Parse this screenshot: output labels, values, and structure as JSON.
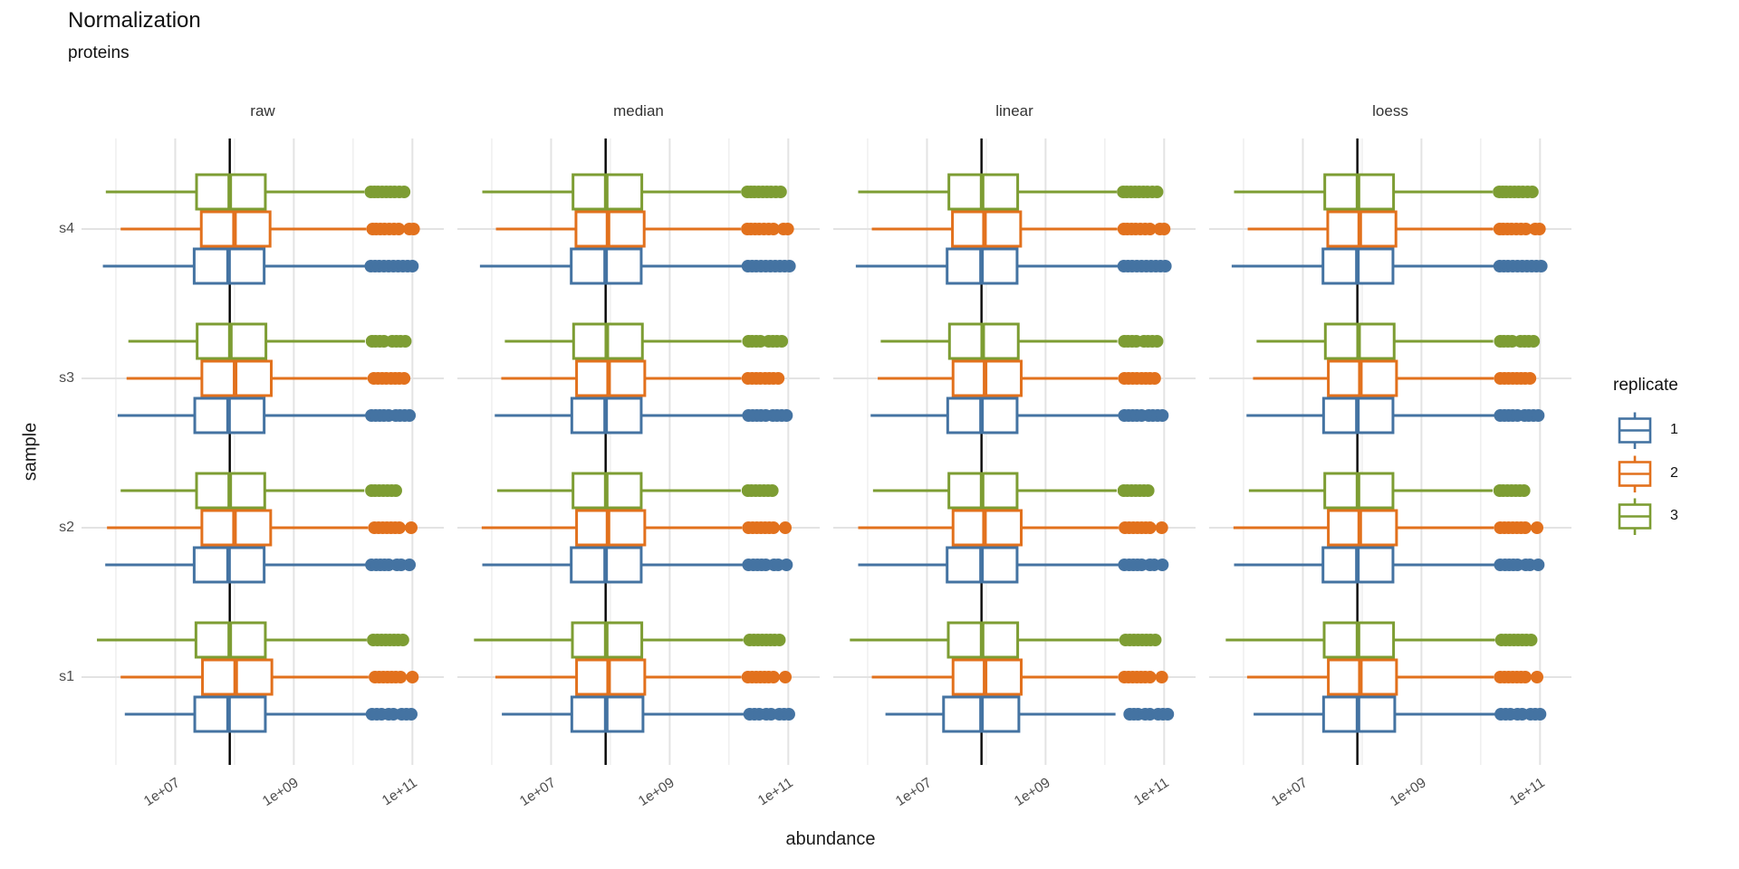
{
  "colors": {
    "background": "#ffffff",
    "grid_major": "#e3e3e3",
    "grid_minor": "#f0f0f0",
    "vline": "#000000",
    "tick_text": "#4d4d4d",
    "strip_text": "#333333",
    "title_text": "#111111"
  },
  "chart_data": {
    "type": "boxplot",
    "title": "Normalization",
    "subtitle": "proteins",
    "xlabel": "abundance",
    "ylabel": "sample",
    "x_scale": "log10",
    "x_range_log10": [
      5.42,
      11.53
    ],
    "x_ticks": [
      {
        "label": "1e+07",
        "log10": 7
      },
      {
        "label": "1e+09",
        "log10": 9
      },
      {
        "label": "1e+11",
        "log10": 11
      }
    ],
    "x_minor_log10": [
      6,
      8,
      10
    ],
    "y_categories_top_to_bottom": [
      "s4",
      "s3",
      "s2",
      "s1"
    ],
    "grid": "major-and-minor",
    "vline_log10": 7.92,
    "vline_color": "#000000",
    "legend": {
      "title": "replicate",
      "position": "right",
      "entries": [
        "1",
        "2",
        "3"
      ]
    },
    "replicates": [
      {
        "id": "1",
        "color": "#4473a2"
      },
      {
        "id": "2",
        "color": "#e2711d"
      },
      {
        "id": "3",
        "color": "#7d9d33"
      }
    ],
    "row_format": [
      "sample",
      "replicate",
      "whisker_lo_log10",
      "q1_log10",
      "median_log10",
      "q3_log10",
      "whisker_hi_log10",
      "outliers_log10"
    ],
    "facets": [
      {
        "label": "raw",
        "rows": [
          [
            "s4",
            "3",
            5.83,
            7.36,
            7.92,
            8.52,
            10.19,
            [
              10.3,
              10.36,
              10.42,
              10.49,
              10.56,
              10.63,
              10.7,
              10.78,
              10.86
            ]
          ],
          [
            "s4",
            "2",
            6.08,
            7.44,
            8.0,
            8.6,
            10.22,
            [
              10.33,
              10.39,
              10.46,
              10.53,
              10.61,
              10.69,
              10.77,
              10.95,
              11.02
            ]
          ],
          [
            "s4",
            "1",
            5.78,
            7.32,
            7.9,
            8.5,
            10.2,
            [
              10.3,
              10.37,
              10.44,
              10.52,
              10.6,
              10.68,
              10.76,
              10.84,
              10.92,
              11.0
            ]
          ],
          [
            "s3",
            "3",
            6.21,
            7.37,
            7.93,
            8.53,
            10.2,
            [
              10.32,
              10.38,
              10.45,
              10.52,
              10.66,
              10.73,
              10.8,
              10.88
            ]
          ],
          [
            "s3",
            "2",
            6.18,
            7.45,
            8.01,
            8.62,
            10.24,
            [
              10.35,
              10.42,
              10.49,
              10.56,
              10.64,
              10.71,
              10.78,
              10.86
            ]
          ],
          [
            "s3",
            "1",
            6.03,
            7.33,
            7.9,
            8.5,
            10.21,
            [
              10.31,
              10.38,
              10.45,
              10.52,
              10.6,
              10.72,
              10.79,
              10.87,
              10.95
            ]
          ],
          [
            "s2",
            "3",
            6.08,
            7.36,
            7.92,
            8.51,
            10.19,
            [
              10.31,
              10.37,
              10.44,
              10.51,
              10.58,
              10.65,
              10.72
            ]
          ],
          [
            "s2",
            "2",
            5.85,
            7.45,
            8.0,
            8.61,
            10.25,
            [
              10.36,
              10.43,
              10.5,
              10.57,
              10.64,
              10.71,
              10.78,
              10.98
            ]
          ],
          [
            "s2",
            "1",
            5.82,
            7.32,
            7.9,
            8.5,
            10.21,
            [
              10.31,
              10.39,
              10.46,
              10.53,
              10.6,
              10.74,
              10.81,
              10.95
            ]
          ],
          [
            "s1",
            "3",
            5.68,
            7.35,
            7.92,
            8.52,
            10.23,
            [
              10.34,
              10.41,
              10.48,
              10.55,
              10.62,
              10.69,
              10.76,
              10.84
            ]
          ],
          [
            "s1",
            "2",
            6.08,
            7.46,
            8.02,
            8.63,
            10.26,
            [
              10.37,
              10.44,
              10.51,
              10.58,
              10.65,
              10.72,
              10.8,
              11.0
            ]
          ],
          [
            "s1",
            "1",
            6.15,
            7.33,
            7.9,
            8.52,
            10.22,
            [
              10.32,
              10.4,
              10.48,
              10.6,
              10.68,
              10.82,
              10.9,
              10.98
            ]
          ]
        ]
      },
      {
        "label": "median",
        "rows": [
          [
            "s4",
            "3",
            5.84,
            7.37,
            7.93,
            8.53,
            10.2,
            [
              10.31,
              10.37,
              10.43,
              10.5,
              10.57,
              10.64,
              10.71,
              10.79,
              10.87
            ]
          ],
          [
            "s4",
            "2",
            6.07,
            7.42,
            7.96,
            8.57,
            10.2,
            [
              10.31,
              10.37,
              10.44,
              10.51,
              10.59,
              10.67,
              10.75,
              10.92,
              10.99
            ]
          ],
          [
            "s4",
            "1",
            5.8,
            7.34,
            7.92,
            8.52,
            10.22,
            [
              10.32,
              10.39,
              10.46,
              10.54,
              10.62,
              10.7,
              10.78,
              10.86,
              10.94,
              11.02
            ]
          ],
          [
            "s3",
            "3",
            6.22,
            7.38,
            7.94,
            8.54,
            10.21,
            [
              10.33,
              10.39,
              10.46,
              10.53,
              10.67,
              10.74,
              10.81,
              10.89
            ]
          ],
          [
            "s3",
            "2",
            6.16,
            7.43,
            7.97,
            8.58,
            10.21,
            [
              10.32,
              10.39,
              10.46,
              10.53,
              10.61,
              10.68,
              10.75,
              10.83
            ]
          ],
          [
            "s3",
            "1",
            6.05,
            7.35,
            7.92,
            8.52,
            10.23,
            [
              10.33,
              10.4,
              10.47,
              10.54,
              10.62,
              10.74,
              10.81,
              10.89,
              10.97
            ]
          ],
          [
            "s2",
            "3",
            6.09,
            7.37,
            7.93,
            8.52,
            10.2,
            [
              10.32,
              10.38,
              10.45,
              10.52,
              10.59,
              10.66,
              10.73
            ]
          ],
          [
            "s2",
            "2",
            5.83,
            7.43,
            7.96,
            8.58,
            10.22,
            [
              10.33,
              10.4,
              10.47,
              10.54,
              10.61,
              10.68,
              10.75,
              10.95
            ]
          ],
          [
            "s2",
            "1",
            5.84,
            7.34,
            7.92,
            8.52,
            10.23,
            [
              10.33,
              10.41,
              10.48,
              10.55,
              10.62,
              10.76,
              10.83,
              10.97
            ]
          ],
          [
            "s1",
            "3",
            5.7,
            7.36,
            7.93,
            8.53,
            10.24,
            [
              10.35,
              10.42,
              10.49,
              10.56,
              10.63,
              10.7,
              10.77,
              10.85
            ]
          ],
          [
            "s1",
            "2",
            6.06,
            7.43,
            7.97,
            8.58,
            10.21,
            [
              10.32,
              10.39,
              10.46,
              10.53,
              10.6,
              10.67,
              10.75,
              10.95
            ]
          ],
          [
            "s1",
            "1",
            6.17,
            7.35,
            7.93,
            8.55,
            10.25,
            [
              10.35,
              10.43,
              10.51,
              10.63,
              10.71,
              10.85,
              10.93,
              11.01
            ]
          ]
        ]
      },
      {
        "label": "linear",
        "rows": [
          [
            "s4",
            "3",
            5.84,
            7.37,
            7.93,
            8.53,
            10.2,
            [
              10.31,
              10.37,
              10.44,
              10.51,
              10.58,
              10.65,
              10.72,
              10.8,
              10.88
            ]
          ],
          [
            "s4",
            "2",
            6.07,
            7.43,
            7.97,
            8.58,
            10.21,
            [
              10.32,
              10.38,
              10.45,
              10.52,
              10.6,
              10.68,
              10.76,
              10.93,
              11.0
            ]
          ],
          [
            "s4",
            "1",
            5.8,
            7.34,
            7.92,
            8.52,
            10.22,
            [
              10.32,
              10.39,
              10.46,
              10.54,
              10.62,
              10.7,
              10.78,
              10.86,
              10.94,
              11.02
            ]
          ],
          [
            "s3",
            "3",
            6.22,
            7.38,
            7.94,
            8.54,
            10.21,
            [
              10.33,
              10.39,
              10.46,
              10.53,
              10.66,
              10.73,
              10.8,
              10.88
            ]
          ],
          [
            "s3",
            "2",
            6.17,
            7.44,
            7.98,
            8.59,
            10.22,
            [
              10.33,
              10.4,
              10.47,
              10.54,
              10.62,
              10.69,
              10.76,
              10.84
            ]
          ],
          [
            "s3",
            "1",
            6.05,
            7.35,
            7.92,
            8.52,
            10.23,
            [
              10.33,
              10.4,
              10.47,
              10.54,
              10.62,
              10.74,
              10.81,
              10.89,
              10.97
            ]
          ],
          [
            "s2",
            "3",
            6.09,
            7.37,
            7.93,
            8.52,
            10.2,
            [
              10.32,
              10.38,
              10.45,
              10.52,
              10.59,
              10.66,
              10.73
            ]
          ],
          [
            "s2",
            "2",
            5.84,
            7.44,
            7.97,
            8.59,
            10.23,
            [
              10.34,
              10.41,
              10.48,
              10.55,
              10.62,
              10.69,
              10.76,
              10.96
            ]
          ],
          [
            "s2",
            "1",
            5.84,
            7.34,
            7.92,
            8.52,
            10.23,
            [
              10.33,
              10.41,
              10.48,
              10.55,
              10.62,
              10.76,
              10.83,
              10.97
            ]
          ],
          [
            "s1",
            "3",
            5.7,
            7.36,
            7.93,
            8.53,
            10.24,
            [
              10.35,
              10.42,
              10.49,
              10.56,
              10.63,
              10.7,
              10.77,
              10.85
            ]
          ],
          [
            "s1",
            "2",
            6.07,
            7.44,
            7.98,
            8.59,
            10.22,
            [
              10.33,
              10.4,
              10.47,
              10.54,
              10.61,
              10.68,
              10.76,
              10.96
            ]
          ],
          [
            "s1",
            "1",
            6.3,
            7.28,
            7.92,
            8.55,
            10.18,
            [
              10.42,
              10.49,
              10.56,
              10.68,
              10.76,
              10.9,
              10.98,
              11.06
            ]
          ]
        ]
      },
      {
        "label": "loess",
        "rows": [
          [
            "s4",
            "3",
            5.84,
            7.37,
            7.93,
            8.53,
            10.2,
            [
              10.31,
              10.37,
              10.43,
              10.5,
              10.57,
              10.64,
              10.71,
              10.79,
              10.87
            ]
          ],
          [
            "s4",
            "2",
            6.07,
            7.42,
            7.96,
            8.57,
            10.21,
            [
              10.32,
              10.38,
              10.45,
              10.52,
              10.6,
              10.68,
              10.76,
              10.92,
              10.99
            ]
          ],
          [
            "s4",
            "1",
            5.8,
            7.34,
            7.92,
            8.52,
            10.22,
            [
              10.32,
              10.39,
              10.46,
              10.54,
              10.62,
              10.7,
              10.78,
              10.86,
              10.94,
              11.02
            ]
          ],
          [
            "s3",
            "3",
            6.22,
            7.38,
            7.94,
            8.54,
            10.21,
            [
              10.33,
              10.39,
              10.46,
              10.53,
              10.67,
              10.74,
              10.81,
              10.89
            ]
          ],
          [
            "s3",
            "2",
            6.16,
            7.43,
            7.97,
            8.58,
            10.22,
            [
              10.33,
              10.4,
              10.47,
              10.54,
              10.61,
              10.68,
              10.75,
              10.83
            ]
          ],
          [
            "s3",
            "1",
            6.05,
            7.35,
            7.92,
            8.52,
            10.23,
            [
              10.33,
              10.4,
              10.47,
              10.54,
              10.62,
              10.74,
              10.81,
              10.89,
              10.97
            ]
          ],
          [
            "s2",
            "3",
            6.09,
            7.37,
            7.93,
            8.52,
            10.2,
            [
              10.32,
              10.38,
              10.45,
              10.52,
              10.59,
              10.66,
              10.73
            ]
          ],
          [
            "s2",
            "2",
            5.83,
            7.43,
            7.96,
            8.58,
            10.22,
            [
              10.33,
              10.4,
              10.47,
              10.54,
              10.61,
              10.68,
              10.75,
              10.95
            ]
          ],
          [
            "s2",
            "1",
            5.84,
            7.34,
            7.92,
            8.52,
            10.23,
            [
              10.33,
              10.41,
              10.48,
              10.55,
              10.62,
              10.76,
              10.83,
              10.97
            ]
          ],
          [
            "s1",
            "3",
            5.7,
            7.36,
            7.93,
            8.53,
            10.24,
            [
              10.35,
              10.42,
              10.49,
              10.56,
              10.63,
              10.7,
              10.77,
              10.85
            ]
          ],
          [
            "s1",
            "2",
            6.06,
            7.43,
            7.97,
            8.58,
            10.22,
            [
              10.33,
              10.4,
              10.47,
              10.54,
              10.61,
              10.68,
              10.75,
              10.95
            ]
          ],
          [
            "s1",
            "1",
            6.17,
            7.35,
            7.93,
            8.55,
            10.24,
            [
              10.34,
              10.42,
              10.5,
              10.62,
              10.7,
              10.84,
              10.92,
              11.0
            ]
          ]
        ]
      }
    ]
  }
}
